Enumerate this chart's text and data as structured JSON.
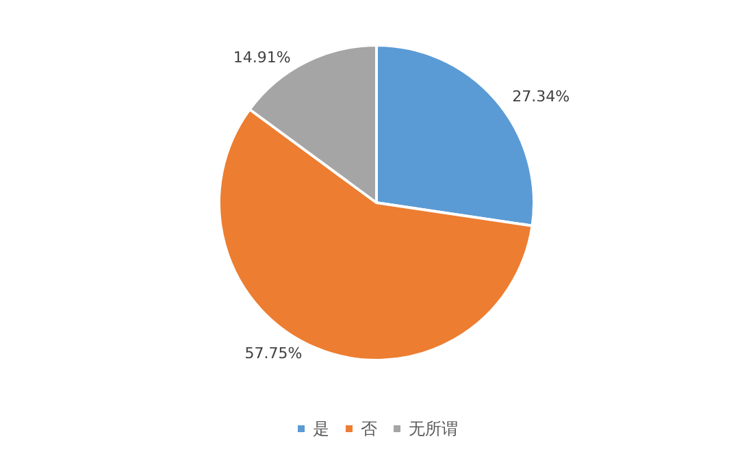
{
  "chart_data": {
    "type": "pie",
    "categories": [
      "是",
      "否",
      "无所谓"
    ],
    "values": [
      27.34,
      57.75,
      14.91
    ],
    "colors": [
      "#5b9bd5",
      "#ed7d31",
      "#a5a5a5"
    ],
    "value_labels": [
      "27.34%",
      "57.75%",
      "14.91%"
    ],
    "legend": "bottom"
  }
}
